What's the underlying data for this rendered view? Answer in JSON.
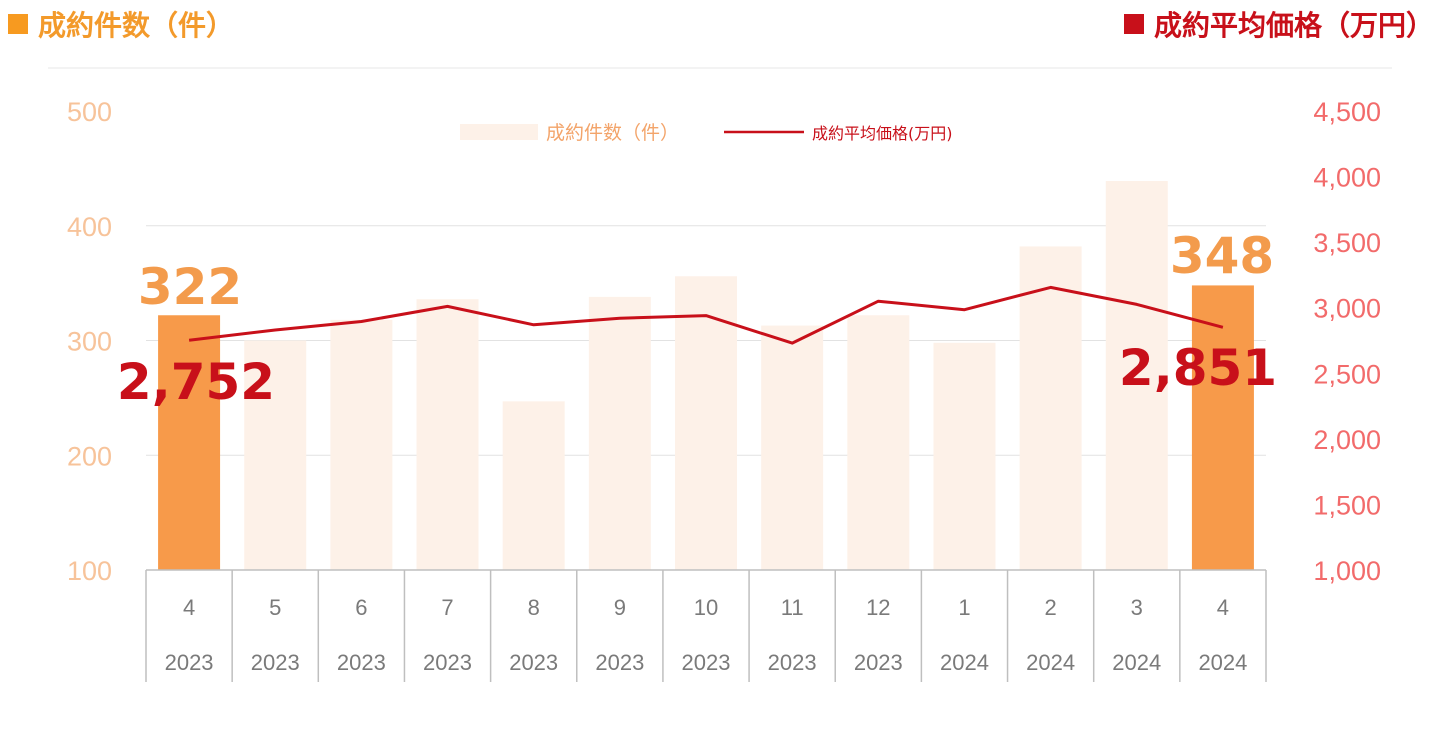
{
  "header": {
    "left_title": "成約件数（件）",
    "right_title": "成約平均価格（万円）",
    "left_color": "#f79a20",
    "right_color": "#c8101a"
  },
  "legend": {
    "bars_label": "成約件数（件）",
    "line_label": "成約平均価格(万円)"
  },
  "callouts": {
    "first_count": "322",
    "last_count": "348",
    "first_price": "2,752",
    "last_price": "2,851"
  },
  "chart_data": {
    "type": "bar",
    "categories": [
      [
        "4",
        "2023"
      ],
      [
        "5",
        "2023"
      ],
      [
        "6",
        "2023"
      ],
      [
        "7",
        "2023"
      ],
      [
        "8",
        "2023"
      ],
      [
        "9",
        "2023"
      ],
      [
        "10",
        "2023"
      ],
      [
        "11",
        "2023"
      ],
      [
        "12",
        "2023"
      ],
      [
        "1",
        "2024"
      ],
      [
        "2",
        "2024"
      ],
      [
        "3",
        "2024"
      ],
      [
        "4",
        "2024"
      ]
    ],
    "series": [
      {
        "name": "成約件数（件）",
        "type": "bar",
        "axis": "left",
        "values": [
          322,
          300,
          318,
          336,
          247,
          338,
          356,
          313,
          322,
          298,
          382,
          439,
          348
        ],
        "highlight": [
          0,
          12
        ],
        "color": "#f79a4a",
        "faded_color": "#fdf1e8"
      },
      {
        "name": "成約平均価格(万円)",
        "type": "line",
        "axis": "right",
        "values": [
          2752,
          2830,
          2895,
          3010,
          2870,
          2920,
          2940,
          2730,
          3050,
          2985,
          3155,
          3025,
          2851
        ],
        "color": "#c8101a"
      }
    ],
    "y_left": {
      "ticks": [
        "100",
        "200",
        "300",
        "400",
        "500"
      ],
      "range": [
        100,
        500
      ]
    },
    "y_right": {
      "ticks": [
        "1,000",
        "1,500",
        "2,000",
        "2,500",
        "3,000",
        "3,500",
        "4,000",
        "4,500"
      ],
      "range": [
        1000,
        4500
      ]
    },
    "grid": true,
    "legend_position": "top-center"
  }
}
